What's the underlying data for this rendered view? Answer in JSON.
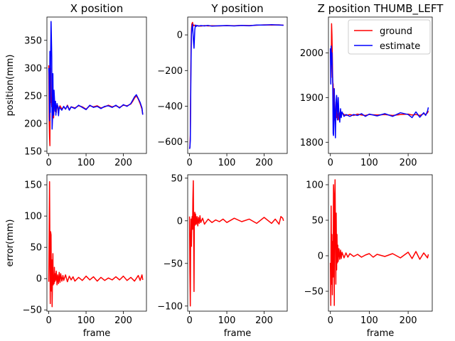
{
  "figure": {
    "legend_items": [
      {
        "label": "ground",
        "color": "#ff0000"
      },
      {
        "label": "estimate",
        "color": "#0000ff"
      }
    ]
  },
  "chart_data": [
    {
      "type": "line",
      "title": "X position",
      "xlabel": "",
      "ylabel": "position(mm)",
      "xlim": [
        -5,
        262
      ],
      "ylim": [
        146,
        392
      ],
      "xticks": [
        0,
        100,
        200
      ],
      "yticks": [
        150,
        200,
        250,
        300,
        350
      ],
      "grid": false,
      "series": [
        {
          "name": "ground",
          "color": "#ff0000",
          "x": [
            0,
            1,
            2,
            3,
            4,
            5,
            6,
            7,
            8,
            9,
            10,
            11,
            12,
            13,
            14,
            15,
            16,
            17,
            18,
            19,
            20,
            22,
            24,
            26,
            28,
            30,
            35,
            40,
            45,
            50,
            55,
            60,
            70,
            80,
            90,
            100,
            110,
            120,
            130,
            140,
            150,
            160,
            170,
            180,
            190,
            200,
            210,
            220,
            225,
            230,
            235,
            240,
            245,
            250,
            252
          ],
          "y": [
            305,
            212,
            175,
            160,
            290,
            300,
            238,
            242,
            230,
            250,
            248,
            235,
            215,
            210,
            230,
            242,
            236,
            226,
            232,
            225,
            220,
            234,
            232,
            218,
            228,
            232,
            226,
            230,
            226,
            233,
            225,
            230,
            228,
            232,
            230,
            226,
            232,
            230,
            232,
            228,
            230,
            233,
            230,
            232,
            229,
            233,
            232,
            235,
            240,
            246,
            250,
            244,
            236,
            226,
            216
          ]
        },
        {
          "name": "estimate",
          "color": "#0000ff",
          "x": [
            0,
            1,
            2,
            3,
            4,
            5,
            6,
            7,
            8,
            9,
            10,
            11,
            12,
            13,
            14,
            15,
            16,
            17,
            18,
            19,
            20,
            22,
            24,
            26,
            28,
            30,
            35,
            40,
            45,
            50,
            55,
            60,
            70,
            80,
            90,
            100,
            110,
            120,
            130,
            140,
            150,
            160,
            170,
            180,
            190,
            200,
            210,
            220,
            225,
            230,
            235,
            240,
            245,
            250,
            252
          ],
          "y": [
            300,
            288,
            205,
            330,
            220,
            315,
            384,
            355,
            320,
            190,
            210,
            290,
            230,
            215,
            260,
            248,
            235,
            222,
            240,
            215,
            225,
            236,
            230,
            214,
            230,
            228,
            224,
            231,
            226,
            232,
            224,
            230,
            227,
            233,
            229,
            225,
            233,
            229,
            231,
            227,
            231,
            232,
            229,
            233,
            228,
            234,
            231,
            236,
            242,
            248,
            252,
            245,
            238,
            228,
            216
          ]
        }
      ]
    },
    {
      "type": "line",
      "title": "Y position",
      "xlabel": "",
      "ylabel": "",
      "xlim": [
        -5,
        262
      ],
      "ylim": [
        -665,
        100
      ],
      "xticks": [
        0,
        100,
        200
      ],
      "yticks": [
        -600,
        -400,
        -200,
        0
      ],
      "grid": false,
      "series": [
        {
          "name": "ground",
          "color": "#ff0000",
          "x": [
            0,
            1,
            2,
            3,
            4,
            5,
            6,
            8,
            10,
            12,
            14,
            16,
            18,
            20,
            25,
            30,
            40,
            50,
            60,
            80,
            100,
            120,
            140,
            160,
            180,
            200,
            220,
            240,
            252
          ],
          "y": [
            -635,
            -630,
            -560,
            -300,
            -80,
            20,
            60,
            70,
            50,
            55,
            52,
            48,
            52,
            50,
            51,
            49,
            52,
            50,
            51,
            50,
            52,
            51,
            53,
            52,
            54,
            56,
            55,
            56,
            54
          ]
        },
        {
          "name": "estimate",
          "color": "#0000ff",
          "x": [
            0,
            1,
            2,
            3,
            4,
            5,
            6,
            8,
            10,
            12,
            14,
            16,
            18,
            20,
            25,
            30,
            40,
            50,
            60,
            80,
            100,
            120,
            140,
            160,
            180,
            200,
            220,
            240,
            252
          ],
          "y": [
            -640,
            -632,
            -590,
            -360,
            -150,
            0,
            35,
            60,
            -20,
            -75,
            30,
            55,
            48,
            53,
            49,
            52,
            50,
            53,
            49,
            51,
            52,
            50,
            53,
            51,
            55,
            55,
            57,
            55,
            54
          ]
        }
      ]
    },
    {
      "type": "line",
      "title": "Z position THUMB_LEFT",
      "xlabel": "",
      "ylabel": "",
      "xlim": [
        -5,
        262
      ],
      "ylim": [
        1775,
        2080
      ],
      "xticks": [
        0,
        100,
        200
      ],
      "yticks": [
        1800,
        1900,
        2000
      ],
      "grid": false,
      "legend": "top-right",
      "series": [
        {
          "name": "ground",
          "color": "#ff0000",
          "x": [
            0,
            1,
            2,
            3,
            4,
            5,
            6,
            7,
            8,
            9,
            10,
            11,
            12,
            13,
            14,
            15,
            16,
            18,
            20,
            22,
            24,
            26,
            28,
            30,
            35,
            40,
            50,
            60,
            70,
            80,
            90,
            100,
            120,
            140,
            160,
            180,
            200,
            210,
            220,
            230,
            240,
            245,
            250,
            252
          ],
          "y": [
            2000,
            1970,
            1945,
            2065,
            2040,
            1990,
            1935,
            1930,
            1905,
            1860,
            1850,
            1890,
            1870,
            1840,
            1860,
            1880,
            1855,
            1872,
            1850,
            1868,
            1858,
            1870,
            1860,
            1866,
            1862,
            1860,
            1862,
            1860,
            1863,
            1861,
            1860,
            1862,
            1861,
            1862,
            1860,
            1862,
            1863,
            1861,
            1862,
            1860,
            1864,
            1862,
            1866,
            1870
          ]
        },
        {
          "name": "estimate",
          "color": "#0000ff",
          "x": [
            0,
            1,
            2,
            3,
            4,
            5,
            6,
            7,
            8,
            9,
            10,
            11,
            12,
            13,
            14,
            15,
            16,
            18,
            20,
            22,
            24,
            26,
            28,
            30,
            35,
            40,
            50,
            60,
            70,
            80,
            90,
            100,
            120,
            140,
            160,
            180,
            200,
            210,
            220,
            230,
            240,
            245,
            250,
            252
          ],
          "y": [
            2010,
            1930,
            2015,
            1975,
            2000,
            1960,
            1935,
            1820,
            1815,
            1850,
            1920,
            1880,
            1855,
            1810,
            1870,
            1895,
            1905,
            1850,
            1900,
            1860,
            1845,
            1875,
            1855,
            1868,
            1858,
            1862,
            1858,
            1862,
            1860,
            1864,
            1858,
            1863,
            1859,
            1864,
            1858,
            1866,
            1862,
            1855,
            1868,
            1856,
            1866,
            1860,
            1870,
            1878
          ]
        }
      ]
    },
    {
      "type": "line",
      "title": "",
      "xlabel": "frame",
      "ylabel": "error(mm)",
      "xlim": [
        -5,
        262
      ],
      "ylim": [
        -52,
        166
      ],
      "xticks": [
        0,
        100,
        200
      ],
      "yticks": [
        -50,
        0,
        50,
        100,
        150
      ],
      "grid": false,
      "series": [
        {
          "name": "",
          "color": "#ff0000",
          "x": [
            0,
            1,
            2,
            3,
            4,
            5,
            6,
            7,
            8,
            9,
            10,
            11,
            12,
            13,
            14,
            15,
            16,
            17,
            18,
            20,
            22,
            24,
            26,
            28,
            30,
            32,
            35,
            38,
            40,
            45,
            50,
            55,
            60,
            65,
            70,
            80,
            90,
            100,
            110,
            120,
            130,
            140,
            150,
            160,
            170,
            180,
            190,
            200,
            210,
            220,
            230,
            240,
            245,
            250,
            252
          ],
          "y": [
            -5,
            60,
            155,
            50,
            -40,
            75,
            70,
            -20,
            30,
            -45,
            10,
            40,
            -10,
            5,
            -8,
            18,
            -5,
            8,
            -3,
            12,
            -10,
            6,
            -8,
            10,
            -6,
            8,
            -4,
            5,
            -3,
            6,
            -5,
            4,
            -2,
            3,
            -4,
            2,
            -3,
            4,
            -2,
            3,
            -4,
            2,
            -3,
            1,
            -2,
            3,
            -2,
            4,
            -3,
            2,
            -4,
            5,
            -3,
            6,
            -2
          ]
        }
      ]
    },
    {
      "type": "line",
      "title": "",
      "xlabel": "frame",
      "ylabel": "",
      "xlim": [
        -5,
        262
      ],
      "ylim": [
        -106,
        54
      ],
      "xticks": [
        0,
        100,
        200
      ],
      "yticks": [
        -100,
        -50,
        0,
        50
      ],
      "grid": false,
      "series": [
        {
          "name": "",
          "color": "#ff0000",
          "x": [
            0,
            1,
            2,
            3,
            4,
            5,
            6,
            7,
            8,
            9,
            10,
            11,
            12,
            13,
            14,
            15,
            16,
            18,
            20,
            22,
            24,
            26,
            28,
            30,
            35,
            40,
            50,
            60,
            70,
            80,
            90,
            100,
            120,
            140,
            160,
            180,
            200,
            220,
            230,
            240,
            245,
            250,
            252
          ],
          "y": [
            5,
            -60,
            -100,
            -20,
            2,
            -30,
            0,
            5,
            -10,
            25,
            47,
            -15,
            -83,
            5,
            10,
            -5,
            8,
            -4,
            5,
            -6,
            4,
            -3,
            6,
            -2,
            3,
            -4,
            2,
            -2,
            1,
            -1,
            2,
            -2,
            3,
            -1,
            2,
            -3,
            4,
            -3,
            2,
            -4,
            5,
            3,
            0
          ]
        }
      ]
    },
    {
      "type": "line",
      "title": "",
      "xlabel": "frame",
      "ylabel": "",
      "xlim": [
        -5,
        262
      ],
      "ylim": [
        -78,
        114
      ],
      "xticks": [
        0,
        100,
        200
      ],
      "yticks": [
        -50,
        0,
        50,
        100
      ],
      "grid": false,
      "series": [
        {
          "name": "",
          "color": "#ff0000",
          "x": [
            0,
            1,
            2,
            3,
            4,
            5,
            6,
            7,
            8,
            9,
            10,
            11,
            12,
            13,
            14,
            15,
            16,
            17,
            18,
            19,
            20,
            22,
            24,
            26,
            28,
            30,
            35,
            40,
            45,
            50,
            60,
            70,
            80,
            90,
            100,
            110,
            120,
            140,
            160,
            180,
            200,
            210,
            220,
            230,
            240,
            250,
            252
          ],
          "y": [
            -10,
            -70,
            70,
            -40,
            30,
            -55,
            20,
            -30,
            100,
            80,
            -70,
            60,
            107,
            40,
            -40,
            60,
            -20,
            30,
            -10,
            15,
            -8,
            10,
            -5,
            8,
            -4,
            5,
            -3,
            4,
            -2,
            3,
            -1,
            2,
            -2,
            1,
            3,
            -2,
            2,
            -1,
            3,
            -3,
            5,
            -4,
            6,
            -5,
            4,
            -3,
            2
          ]
        }
      ]
    }
  ]
}
